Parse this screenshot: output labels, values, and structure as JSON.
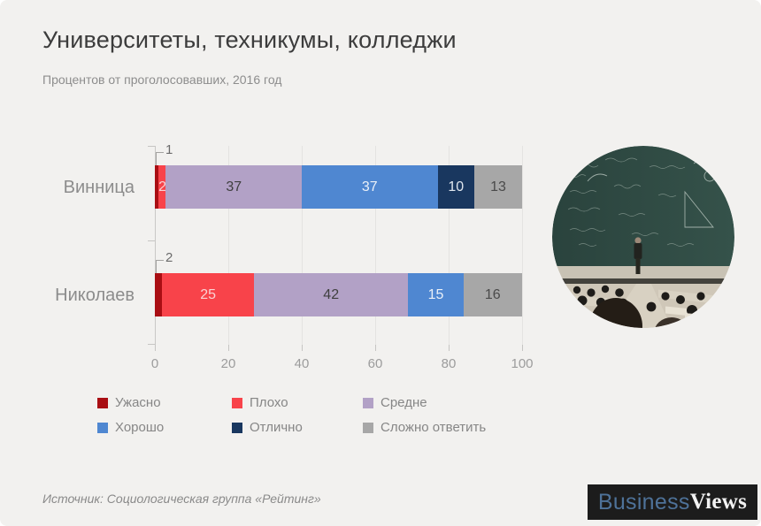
{
  "page": {
    "title": "Университеты, техникумы, колледжи",
    "subtitle": "Процентов от проголосовавших, 2016 год",
    "source": "Источник: Социологическая группа «Рейтинг»"
  },
  "logo": {
    "part1": "Business",
    "part2": "Views",
    "background": "#1c1c1c",
    "part1_color": "#4e7299",
    "part2_color": "#f2f2f2"
  },
  "photo": {
    "icon": "lecture-hall-photo"
  },
  "chart_data": {
    "type": "bar",
    "orientation": "horizontal",
    "stacked": true,
    "title": "Университеты, техникумы, колледжи",
    "subtitle": "Процентов от проголосовавших, 2016 год",
    "categories": [
      "Винница",
      "Николаев"
    ],
    "series": [
      {
        "name": "Ужасно",
        "color": "#a90e13",
        "label_color": "#ffffff",
        "label_style": "callout",
        "values": [
          1,
          2
        ]
      },
      {
        "name": "Плохо",
        "color": "#f8434a",
        "label_color": "#fad2d3",
        "label_style": "inside",
        "values": [
          2,
          25
        ]
      },
      {
        "name": "Средне",
        "color": "#b2a1c6",
        "label_color": "#3f3f3f",
        "label_style": "inside",
        "values": [
          37,
          42
        ]
      },
      {
        "name": "Хорошо",
        "color": "#4f87d1",
        "label_color": "#eaf0f8",
        "label_style": "inside",
        "values": [
          37,
          15
        ]
      },
      {
        "name": "Отлично",
        "color": "#19375f",
        "label_color": "#dfe6ee",
        "label_style": "inside",
        "values": [
          10,
          0
        ]
      },
      {
        "name": "Сложно ответить",
        "color": "#a7a7a7",
        "label_color": "#4a4a4a",
        "label_style": "inside",
        "values": [
          13,
          16
        ]
      }
    ],
    "xlim": [
      0,
      100
    ],
    "x_ticks": [
      0,
      20,
      40,
      60,
      80,
      100
    ],
    "grid": true,
    "legend_position": "bottom"
  }
}
